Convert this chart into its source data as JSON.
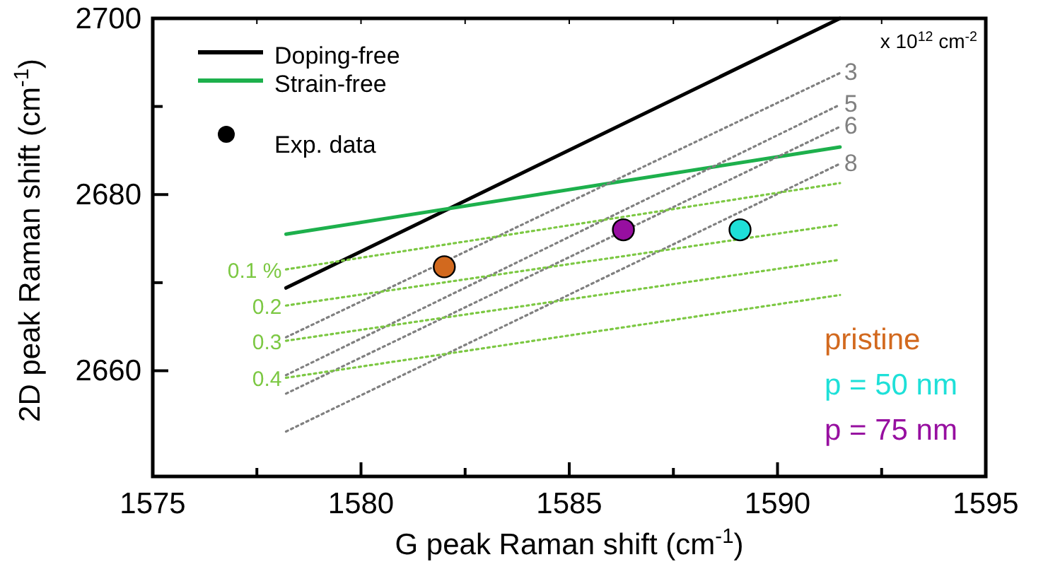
{
  "chart_data": {
    "type": "line",
    "xlabel": "G peak Raman shift (cm$^{-1}$)",
    "ylabel": "2D peak Raman shift (cm$^{-1}$)",
    "xlim": [
      1575,
      1595
    ],
    "xticks": [
      1575,
      {
        "value": 1577.5,
        "label": null
      },
      1580,
      {
        "value": 1582.5,
        "label": null
      },
      1585,
      {
        "value": 1587.5,
        "label": null
      },
      1590,
      {
        "value": 1592.5,
        "label": null
      },
      1595
    ],
    "ylim": [
      2648,
      2700
    ],
    "yticks": [
      2660,
      {
        "value": 2670,
        "label": null
      },
      2680,
      {
        "value": 2690,
        "label": null
      },
      2700
    ],
    "grid": false,
    "legend": "top left",
    "annotations": [
      "x 10$^{12}$ cm$^{-2}$",
      "Exp. data"
    ],
    "series": [
      {
        "name": "Doping-free",
        "color": "#000000",
        "line_style": "solid",
        "x": [
          1578.2,
          1591.5
        ],
        "values": [
          2669.4,
          2700
        ]
      },
      {
        "name": "Strain-free",
        "color": "#1db04c",
        "line_style": "solid",
        "x": [
          1578.2,
          1591.5
        ],
        "values": [
          2675.5,
          2685.4
        ]
      },
      {
        "name": "3",
        "color": "#808080",
        "line_style": "dotted",
        "x": [
          1578.2,
          1591.5
        ],
        "values": [
          2663.8,
          2693.8
        ]
      },
      {
        "name": "5",
        "color": "#808080",
        "line_style": "dotted",
        "x": [
          1578.2,
          1591.5
        ],
        "values": [
          2659.5,
          2690.2
        ]
      },
      {
        "name": "6",
        "color": "#808080",
        "line_style": "dotted",
        "x": [
          1578.2,
          1591.5
        ],
        "values": [
          2657.4,
          2687.7
        ]
      },
      {
        "name": "8",
        "color": "#808080",
        "line_style": "dotted",
        "x": [
          1578.2,
          1591.5
        ],
        "values": [
          2653.1,
          2683.5
        ]
      },
      {
        "name": "0.1 %",
        "color": "#7cc843",
        "line_style": "dotted",
        "x": [
          1578.2,
          1591.5
        ],
        "values": [
          2671.5,
          2681.3
        ]
      },
      {
        "name": "0.2",
        "color": "#7cc843",
        "line_style": "dotted",
        "x": [
          1578.2,
          1591.5
        ],
        "values": [
          2667.4,
          2676.6
        ]
      },
      {
        "name": "0.3",
        "color": "#7cc843",
        "line_style": "dotted",
        "x": [
          1578.2,
          1591.5
        ],
        "values": [
          2663.4,
          2672.6
        ]
      },
      {
        "name": "0.4",
        "color": "#7cc843",
        "line_style": "dotted",
        "x": [
          1578.2,
          1591.5
        ],
        "values": [
          2659.2,
          2668.6
        ]
      },
      {
        "name": "pristine",
        "type": "scatter",
        "marker": "circle",
        "color": "#d2691e",
        "x": [
          1582.0
        ],
        "values": [
          2671.8
        ]
      },
      {
        "name": "p = 50 nm",
        "type": "scatter",
        "marker": "circle",
        "color": "#1ee0d8",
        "x": [
          1589.1
        ],
        "values": [
          2676.0
        ]
      },
      {
        "name": "p = 75 nm",
        "type": "scatter",
        "marker": "circle",
        "color": "#970fa0",
        "x": [
          1586.3
        ],
        "values": [
          2676.0
        ]
      }
    ]
  }
}
